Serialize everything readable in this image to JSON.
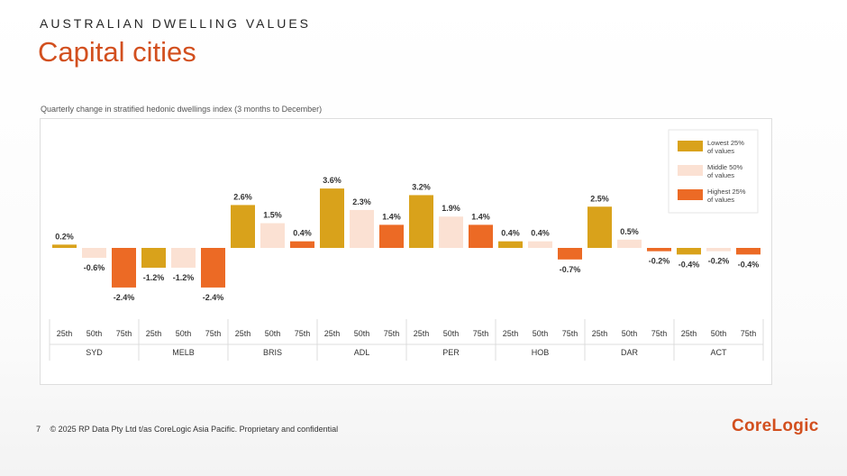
{
  "slide": {
    "kicker": "AUSTRALIAN DWELLING VALUES",
    "title": "Capital cities",
    "footer_page": "7",
    "footer_text": "© 2025 RP Data Pty Ltd t/as CoreLogic Asia Pacific. Proprietary and confidential",
    "logo": "CoreLogic"
  },
  "chart_data": {
    "type": "bar",
    "title": "",
    "subtitle": "Quarterly change in stratified hedonic dwellings index (3 months to December)",
    "groups": [
      "SYD",
      "MELB",
      "BRIS",
      "ADL",
      "PER",
      "HOB",
      "DAR",
      "ACT"
    ],
    "subcategories": [
      "25th",
      "50th",
      "75th"
    ],
    "series": [
      {
        "name": "Lowest 25% of values",
        "color": "#d9a21b",
        "values": [
          0.2,
          -1.2,
          2.6,
          3.6,
          3.2,
          0.4,
          2.5,
          -0.4
        ]
      },
      {
        "name": "Middle 50% of values",
        "color": "#fbe1d3",
        "values": [
          -0.6,
          -1.2,
          1.5,
          2.3,
          1.9,
          0.4,
          0.5,
          -0.2
        ]
      },
      {
        "name": "Highest 25% of values",
        "color": "#ec6a25",
        "values": [
          -2.4,
          -2.4,
          0.4,
          1.4,
          1.4,
          -0.7,
          -0.2,
          -0.4
        ]
      }
    ],
    "value_suffix": "%",
    "grid": false,
    "legend_position": "top-right"
  }
}
